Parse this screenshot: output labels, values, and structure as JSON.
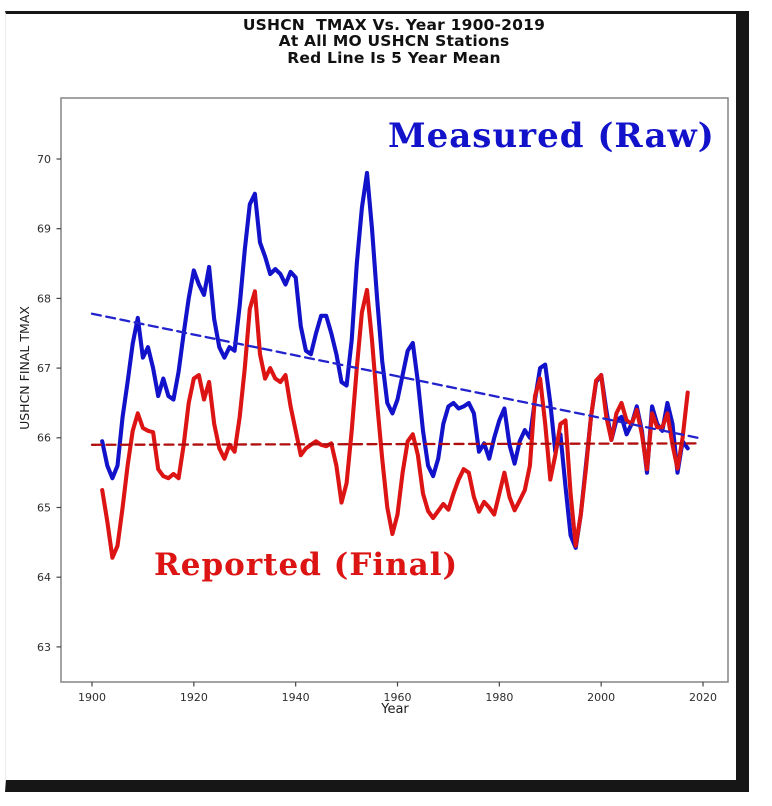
{
  "figure": {
    "title_lines": [
      "USHCN  TMAX Vs. Year 1900-2019",
      "At All MO USHCN Stations",
      "Red Line Is 5 Year Mean"
    ],
    "xlabel": "Year",
    "ylabel": "USHCN FINAL TMAX",
    "annotation_raw": "Measured (Raw)",
    "annotation_final": "Reported (Final)"
  },
  "colors": {
    "raw_line": "#1212cb",
    "final_line": "#dc1414",
    "raw_trend": "#2323cd",
    "final_trend": "#b00e0e",
    "raw_text": "#1212cb",
    "final_text": "#dc1414",
    "spine": "#8c8c8c",
    "tick_text": "#2e2e2e",
    "title_text": "#111111"
  },
  "chart_data": {
    "type": "line",
    "title": "USHCN  TMAX Vs. Year 1900-2019 | At All MO USHCN Stations | Red Line Is 5 Year Mean",
    "xlabel": "Year",
    "ylabel": "USHCN FINAL TMAX",
    "xlim": [
      1894,
      2025
    ],
    "ylim": [
      62.5,
      70.9
    ],
    "x_ticks": [
      1900,
      1920,
      1940,
      1960,
      1980,
      2000,
      2020
    ],
    "y_ticks": [
      63,
      64,
      65,
      66,
      67,
      68,
      69,
      70
    ],
    "grid": false,
    "legend_position": "inline-annotations",
    "series": [
      {
        "name": "Measured (Raw)",
        "slug": "measured-raw",
        "style": "solid",
        "color": "#1212cb",
        "points": [
          [
            1902,
            65.95
          ],
          [
            1903,
            65.6
          ],
          [
            1904,
            65.42
          ],
          [
            1905,
            65.6
          ],
          [
            1906,
            66.3
          ],
          [
            1907,
            66.8
          ],
          [
            1908,
            67.35
          ],
          [
            1909,
            67.72
          ],
          [
            1910,
            67.15
          ],
          [
            1911,
            67.3
          ],
          [
            1912,
            67.0
          ],
          [
            1913,
            66.6
          ],
          [
            1914,
            66.85
          ],
          [
            1915,
            66.6
          ],
          [
            1916,
            66.55
          ],
          [
            1917,
            66.95
          ],
          [
            1918,
            67.5
          ],
          [
            1919,
            68.0
          ],
          [
            1920,
            68.4
          ],
          [
            1921,
            68.2
          ],
          [
            1922,
            68.05
          ],
          [
            1923,
            68.45
          ],
          [
            1924,
            67.7
          ],
          [
            1925,
            67.3
          ],
          [
            1926,
            67.15
          ],
          [
            1927,
            67.3
          ],
          [
            1928,
            67.25
          ],
          [
            1929,
            67.9
          ],
          [
            1930,
            68.7
          ],
          [
            1931,
            69.35
          ],
          [
            1932,
            69.5
          ],
          [
            1933,
            68.8
          ],
          [
            1934,
            68.6
          ],
          [
            1935,
            68.35
          ],
          [
            1936,
            68.42
          ],
          [
            1937,
            68.35
          ],
          [
            1938,
            68.2
          ],
          [
            1939,
            68.38
          ],
          [
            1940,
            68.3
          ],
          [
            1941,
            67.6
          ],
          [
            1942,
            67.25
          ],
          [
            1943,
            67.2
          ],
          [
            1944,
            67.5
          ],
          [
            1945,
            67.75
          ],
          [
            1946,
            67.75
          ],
          [
            1947,
            67.5
          ],
          [
            1948,
            67.2
          ],
          [
            1949,
            66.8
          ],
          [
            1950,
            66.75
          ],
          [
            1951,
            67.4
          ],
          [
            1952,
            68.5
          ],
          [
            1953,
            69.3
          ],
          [
            1954,
            69.8
          ],
          [
            1955,
            69.0
          ],
          [
            1956,
            68.0
          ],
          [
            1957,
            67.1
          ],
          [
            1958,
            66.5
          ],
          [
            1959,
            66.35
          ],
          [
            1960,
            66.55
          ],
          [
            1961,
            66.9
          ],
          [
            1962,
            67.25
          ],
          [
            1963,
            67.36
          ],
          [
            1964,
            66.8
          ],
          [
            1965,
            66.1
          ],
          [
            1966,
            65.6
          ],
          [
            1967,
            65.45
          ],
          [
            1968,
            65.7
          ],
          [
            1969,
            66.2
          ],
          [
            1970,
            66.45
          ],
          [
            1971,
            66.5
          ],
          [
            1972,
            66.42
          ],
          [
            1973,
            66.45
          ],
          [
            1974,
            66.5
          ],
          [
            1975,
            66.35
          ],
          [
            1976,
            65.8
          ],
          [
            1977,
            65.92
          ],
          [
            1978,
            65.7
          ],
          [
            1979,
            66.0
          ],
          [
            1980,
            66.25
          ],
          [
            1981,
            66.42
          ],
          [
            1982,
            65.9
          ],
          [
            1983,
            65.63
          ],
          [
            1984,
            65.95
          ],
          [
            1985,
            66.11
          ],
          [
            1986,
            66.0
          ],
          [
            1987,
            66.55
          ],
          [
            1988,
            67.0
          ],
          [
            1989,
            67.05
          ],
          [
            1990,
            66.5
          ],
          [
            1991,
            65.8
          ],
          [
            1992,
            66.05
          ],
          [
            1993,
            65.3
          ],
          [
            1994,
            64.6
          ],
          [
            1995,
            64.42
          ],
          [
            1996,
            64.9
          ],
          [
            1997,
            65.6
          ],
          [
            1998,
            66.3
          ],
          [
            1999,
            66.8
          ],
          [
            2000,
            66.9
          ],
          [
            2001,
            66.4
          ],
          [
            2002,
            65.97
          ],
          [
            2003,
            66.25
          ],
          [
            2004,
            66.3
          ],
          [
            2005,
            66.05
          ],
          [
            2006,
            66.2
          ],
          [
            2007,
            66.45
          ],
          [
            2008,
            66.1
          ],
          [
            2009,
            65.5
          ],
          [
            2010,
            66.45
          ],
          [
            2011,
            66.2
          ],
          [
            2012,
            66.1
          ],
          [
            2013,
            66.5
          ],
          [
            2014,
            66.2
          ],
          [
            2015,
            65.5
          ],
          [
            2016,
            65.95
          ],
          [
            2017,
            65.85
          ]
        ]
      },
      {
        "name": "Reported (Final)",
        "slug": "reported-final",
        "style": "solid",
        "color": "#dc1414",
        "points": [
          [
            1902,
            65.25
          ],
          [
            1903,
            64.8
          ],
          [
            1904,
            64.28
          ],
          [
            1905,
            64.45
          ],
          [
            1906,
            65.0
          ],
          [
            1907,
            65.6
          ],
          [
            1908,
            66.1
          ],
          [
            1909,
            66.35
          ],
          [
            1910,
            66.14
          ],
          [
            1911,
            66.1
          ],
          [
            1912,
            66.08
          ],
          [
            1913,
            65.55
          ],
          [
            1914,
            65.45
          ],
          [
            1915,
            65.42
          ],
          [
            1916,
            65.48
          ],
          [
            1917,
            65.42
          ],
          [
            1918,
            65.9
          ],
          [
            1919,
            66.5
          ],
          [
            1920,
            66.85
          ],
          [
            1921,
            66.9
          ],
          [
            1922,
            66.55
          ],
          [
            1923,
            66.8
          ],
          [
            1924,
            66.2
          ],
          [
            1925,
            65.85
          ],
          [
            1926,
            65.7
          ],
          [
            1927,
            65.9
          ],
          [
            1928,
            65.8
          ],
          [
            1929,
            66.3
          ],
          [
            1930,
            67.0
          ],
          [
            1931,
            67.85
          ],
          [
            1932,
            68.1
          ],
          [
            1933,
            67.2
          ],
          [
            1934,
            66.85
          ],
          [
            1935,
            67.0
          ],
          [
            1936,
            66.85
          ],
          [
            1937,
            66.8
          ],
          [
            1938,
            66.9
          ],
          [
            1939,
            66.45
          ],
          [
            1940,
            66.1
          ],
          [
            1941,
            65.75
          ],
          [
            1942,
            65.85
          ],
          [
            1943,
            65.9
          ],
          [
            1944,
            65.95
          ],
          [
            1945,
            65.9
          ],
          [
            1946,
            65.88
          ],
          [
            1947,
            65.92
          ],
          [
            1948,
            65.6
          ],
          [
            1949,
            65.07
          ],
          [
            1950,
            65.35
          ],
          [
            1951,
            66.1
          ],
          [
            1952,
            67.0
          ],
          [
            1953,
            67.8
          ],
          [
            1954,
            68.12
          ],
          [
            1955,
            67.4
          ],
          [
            1956,
            66.5
          ],
          [
            1957,
            65.7
          ],
          [
            1958,
            65.0
          ],
          [
            1959,
            64.62
          ],
          [
            1960,
            64.9
          ],
          [
            1961,
            65.5
          ],
          [
            1962,
            65.95
          ],
          [
            1963,
            66.05
          ],
          [
            1964,
            65.75
          ],
          [
            1965,
            65.2
          ],
          [
            1966,
            64.95
          ],
          [
            1967,
            64.85
          ],
          [
            1968,
            64.95
          ],
          [
            1969,
            65.05
          ],
          [
            1970,
            64.97
          ],
          [
            1971,
            65.2
          ],
          [
            1972,
            65.4
          ],
          [
            1973,
            65.55
          ],
          [
            1974,
            65.5
          ],
          [
            1975,
            65.15
          ],
          [
            1976,
            64.94
          ],
          [
            1977,
            65.08
          ],
          [
            1978,
            65.0
          ],
          [
            1979,
            64.9
          ],
          [
            1980,
            65.2
          ],
          [
            1981,
            65.5
          ],
          [
            1982,
            65.15
          ],
          [
            1983,
            64.96
          ],
          [
            1984,
            65.1
          ],
          [
            1985,
            65.25
          ],
          [
            1986,
            65.6
          ],
          [
            1987,
            66.6
          ],
          [
            1988,
            66.85
          ],
          [
            1989,
            66.2
          ],
          [
            1990,
            65.4
          ],
          [
            1991,
            65.75
          ],
          [
            1992,
            66.2
          ],
          [
            1993,
            66.25
          ],
          [
            1994,
            65.2
          ],
          [
            1995,
            64.45
          ],
          [
            1996,
            64.9
          ],
          [
            1997,
            65.55
          ],
          [
            1998,
            66.3
          ],
          [
            1999,
            66.82
          ],
          [
            2000,
            66.9
          ],
          [
            2001,
            66.3
          ],
          [
            2002,
            65.97
          ],
          [
            2003,
            66.35
          ],
          [
            2004,
            66.5
          ],
          [
            2005,
            66.25
          ],
          [
            2006,
            66.2
          ],
          [
            2007,
            66.4
          ],
          [
            2008,
            66.05
          ],
          [
            2009,
            65.55
          ],
          [
            2010,
            66.35
          ],
          [
            2011,
            66.15
          ],
          [
            2012,
            66.15
          ],
          [
            2013,
            66.35
          ],
          [
            2014,
            65.9
          ],
          [
            2015,
            65.56
          ],
          [
            2016,
            66.0
          ],
          [
            2017,
            66.65
          ]
        ]
      },
      {
        "name": "Measured (Raw) linear trend",
        "slug": "measured-raw-trend",
        "style": "dashed",
        "color": "#2323cd",
        "points": [
          [
            1900,
            67.78
          ],
          [
            2019,
            66.0
          ]
        ]
      },
      {
        "name": "Reported (Final) linear trend",
        "slug": "reported-final-trend",
        "style": "dashed",
        "color": "#b00e0e",
        "points": [
          [
            1900,
            65.9
          ],
          [
            2019,
            65.92
          ]
        ]
      }
    ]
  }
}
